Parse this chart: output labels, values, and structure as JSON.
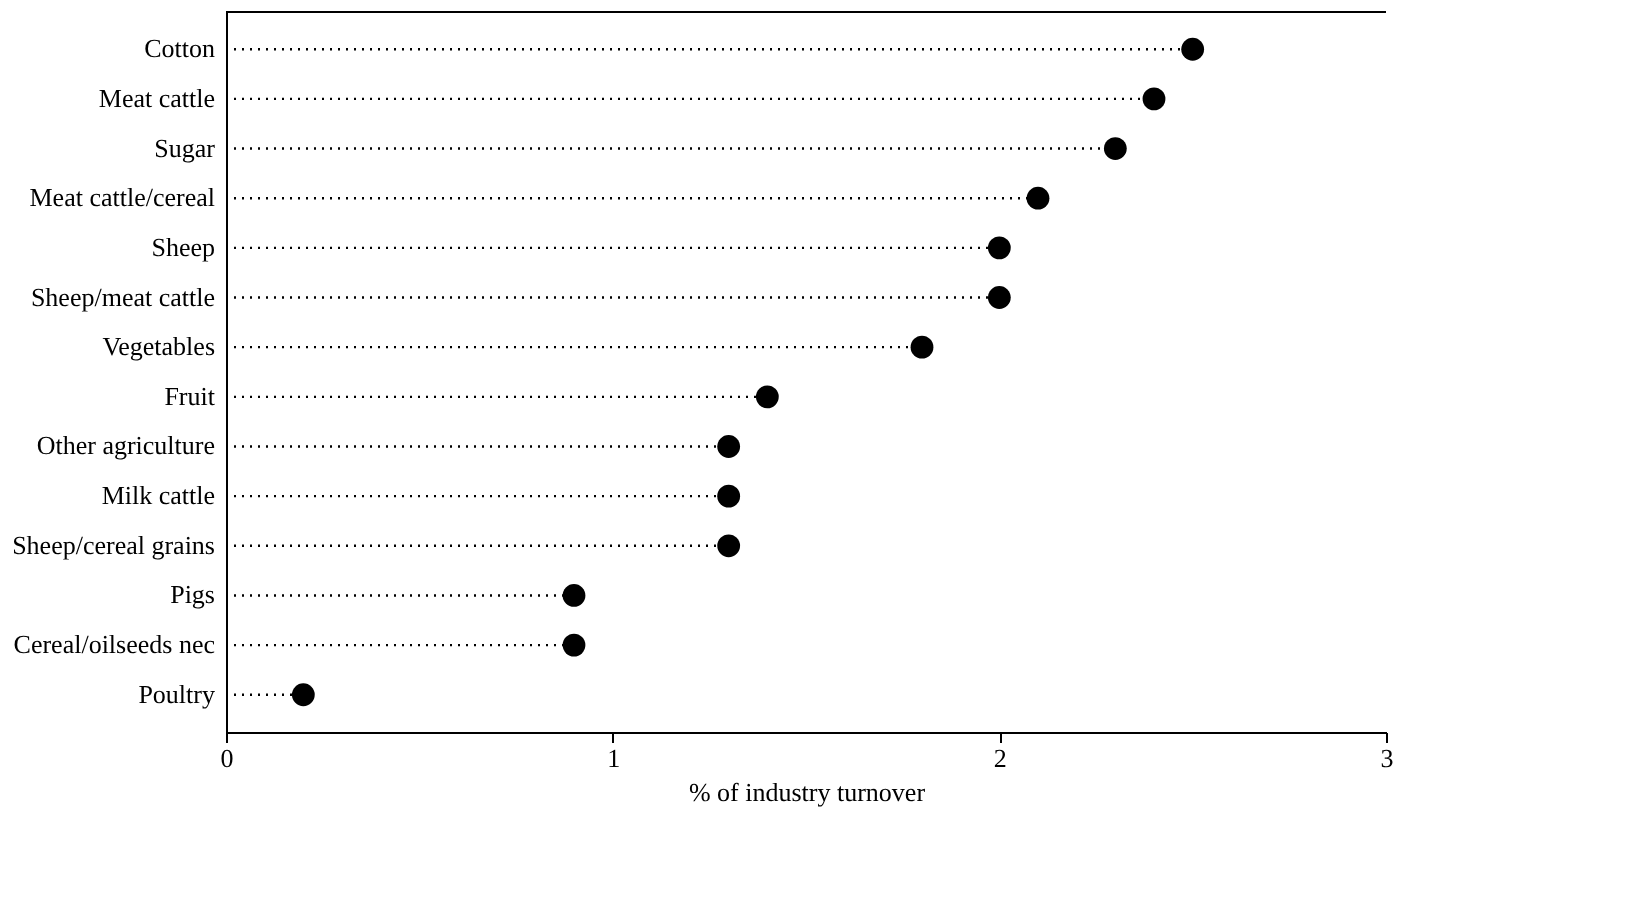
{
  "chart_data": {
    "type": "lollipop",
    "orientation": "horizontal",
    "xlabel": "% of industry turnover",
    "categories": [
      "Cotton",
      "Meat cattle",
      "Sugar",
      "Meat cattle/cereal",
      "Sheep",
      "Sheep/meat cattle",
      "Vegetables",
      "Fruit",
      "Other agriculture",
      "Milk cattle",
      "Sheep/cereal grains",
      "Pigs",
      "Cereal/oilseeds nec",
      "Poultry"
    ],
    "values": [
      2.5,
      2.4,
      2.3,
      2.1,
      2.0,
      2.0,
      1.8,
      1.4,
      1.3,
      1.3,
      1.3,
      0.9,
      0.9,
      0.2
    ],
    "color": "#000000",
    "xlim": [
      0,
      3
    ],
    "xticks": [
      0,
      1,
      2,
      3
    ],
    "grid": false,
    "marker": "circle",
    "line_style": "dotted"
  }
}
